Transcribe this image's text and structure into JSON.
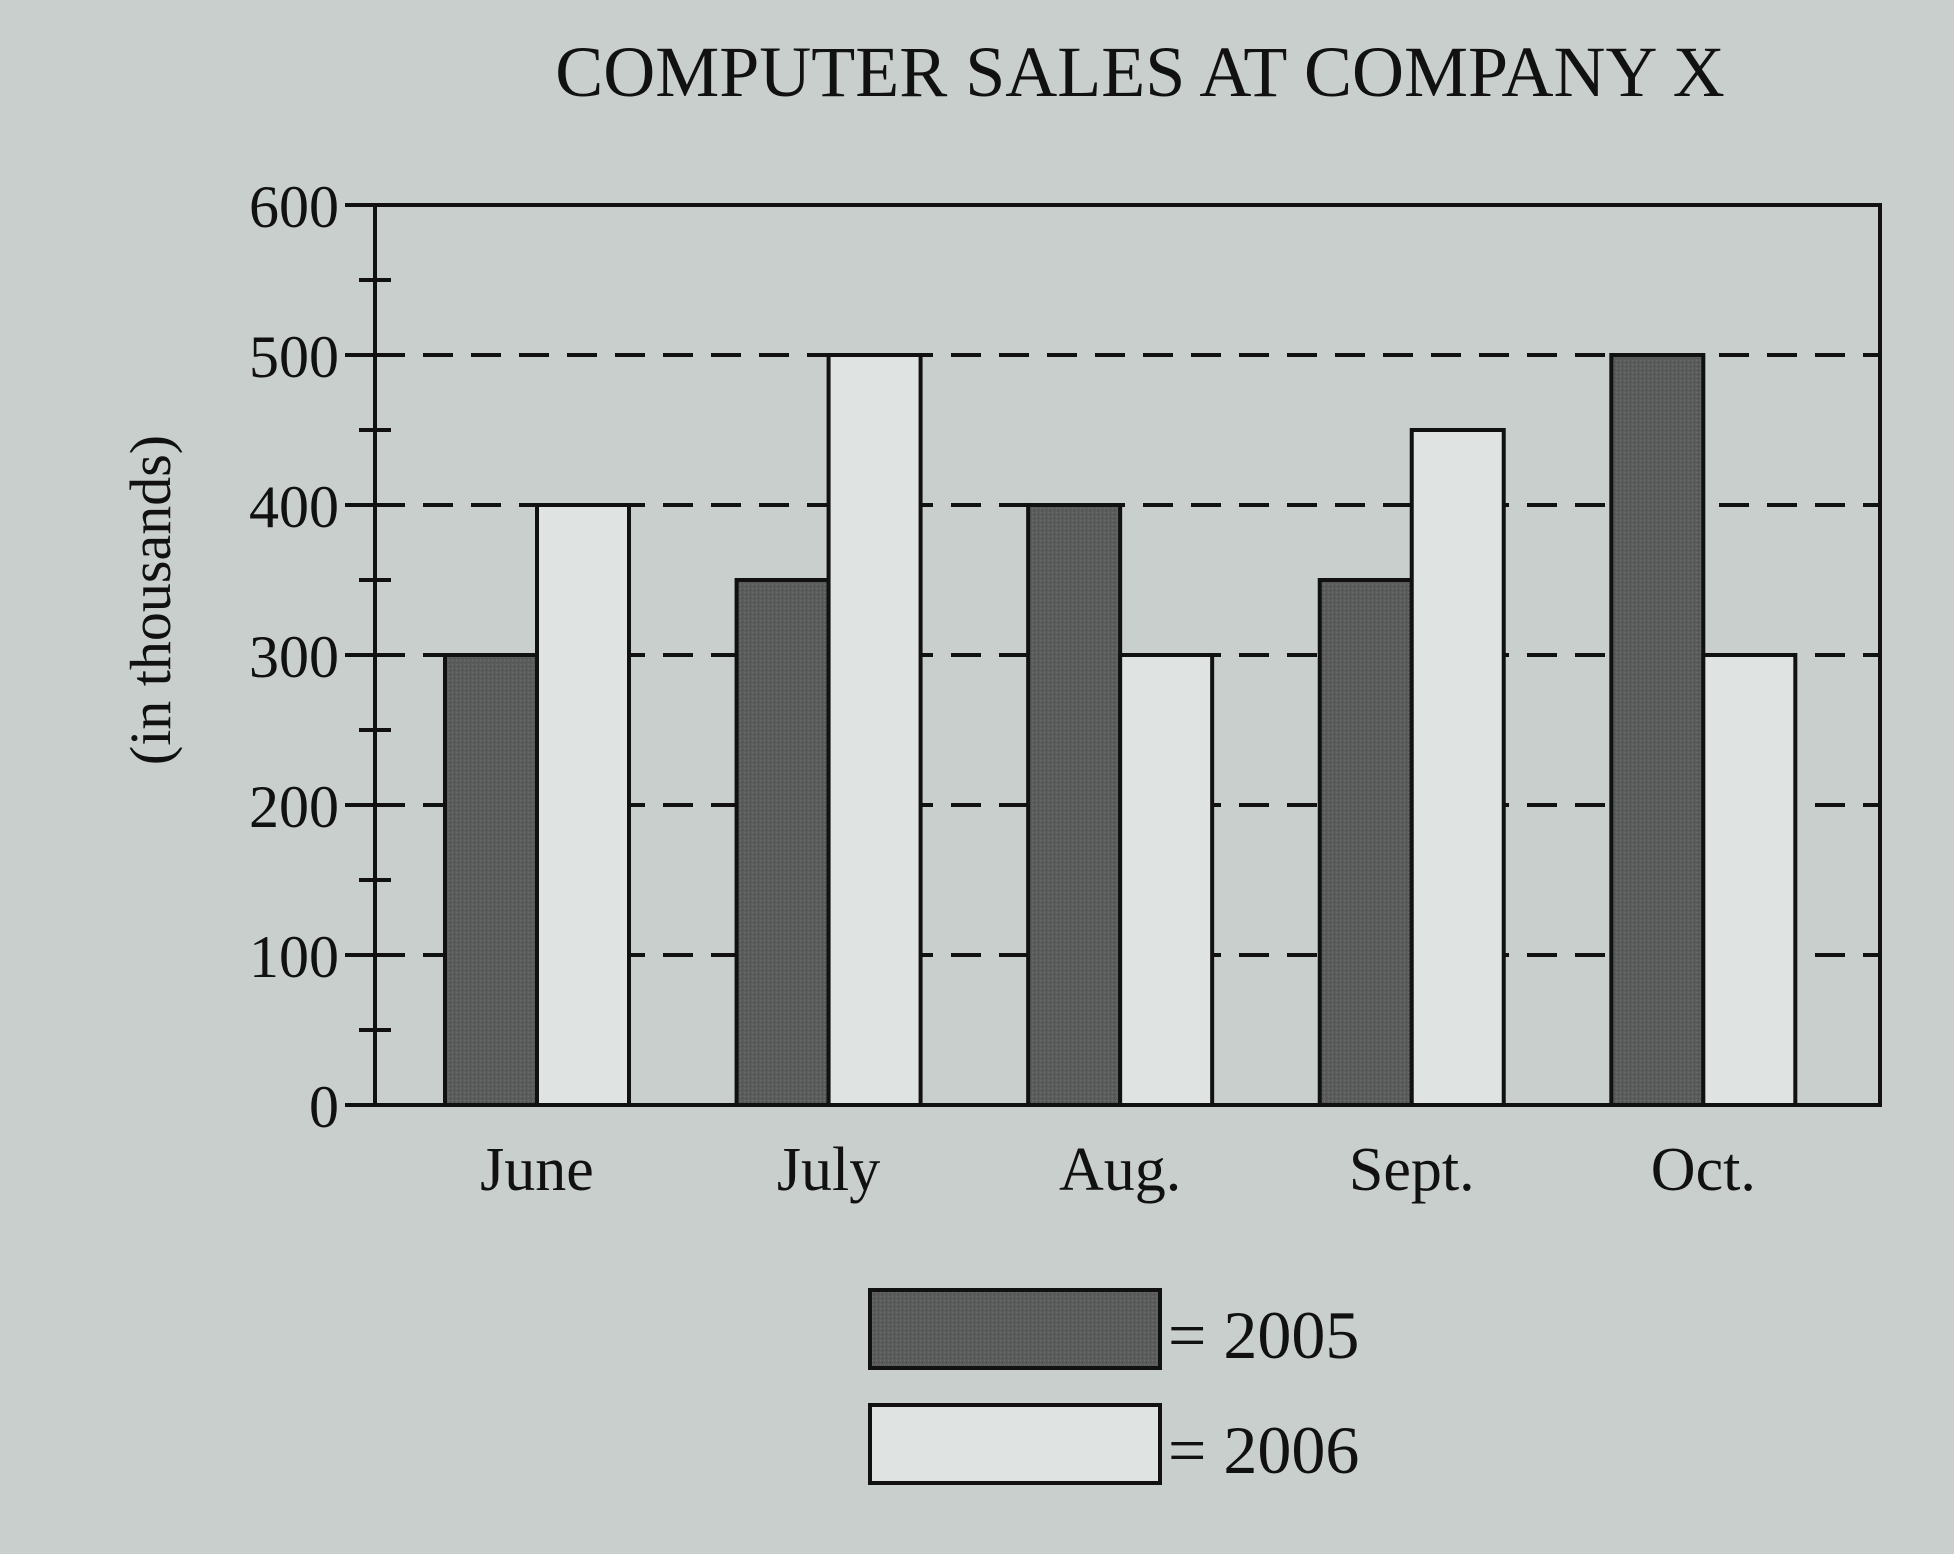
{
  "chart_data": {
    "type": "bar",
    "title": "COMPUTER SALES AT COMPANY X",
    "xlabel": "",
    "ylabel": "(in thousands)",
    "ylim": [
      0,
      600
    ],
    "yticks": [
      0,
      100,
      200,
      300,
      400,
      500,
      600
    ],
    "grid": true,
    "legend_position": "bottom-center",
    "categories": [
      "June",
      "July",
      "Aug.",
      "Sept.",
      "Oct."
    ],
    "series": [
      {
        "name": "2005",
        "values": [
          300,
          350,
          400,
          350,
          500
        ],
        "color": "#5a5d5c"
      },
      {
        "name": "2006",
        "values": [
          400,
          500,
          300,
          450,
          300
        ],
        "color": "#dfe3e1"
      }
    ],
    "legend": [
      {
        "label": "= 2005",
        "series": "2005"
      },
      {
        "label": "= 2006",
        "series": "2006"
      }
    ]
  }
}
